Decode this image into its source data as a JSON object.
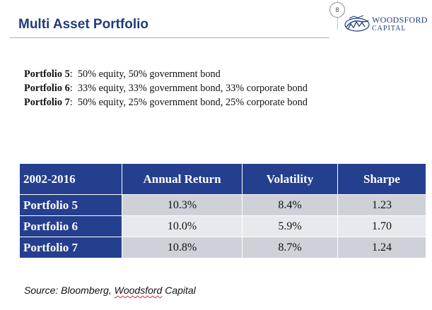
{
  "header": {
    "title": "Multi Asset Portfolio",
    "page_number": "8",
    "logo": {
      "line1": "WOODSFORD",
      "line2": "CAPITAL"
    }
  },
  "portfolios": [
    {
      "name": "Portfolio 5",
      "composition": "50% equity, 50% government bond"
    },
    {
      "name": "Portfolio 6",
      "composition": "33% equity, 33% government bond, 33% corporate bond"
    },
    {
      "name": "Portfolio 7",
      "composition": "50% equity, 25% government bond, 25% corporate bond"
    }
  ],
  "table": {
    "headers": [
      "2002-2016",
      "Annual Return",
      "Volatility",
      "Sharpe"
    ],
    "rows": [
      {
        "label": "Portfolio 5",
        "annual_return": "10.3%",
        "volatility": "8.4%",
        "sharpe": "1.23"
      },
      {
        "label": "Portfolio 6",
        "annual_return": "10.0%",
        "volatility": "5.9%",
        "sharpe": "1.70"
      },
      {
        "label": "Portfolio 7",
        "annual_return": "10.8%",
        "volatility": "8.7%",
        "sharpe": "1.24"
      }
    ]
  },
  "source": {
    "prefix": "Source: Bloomberg, ",
    "name": "Woodsford",
    "suffix": " Capital"
  },
  "colors": {
    "title": "#1f3c7a",
    "table_header": "#253f8f",
    "row_odd": "#cfd1d9",
    "row_even": "#e8e9ee"
  }
}
